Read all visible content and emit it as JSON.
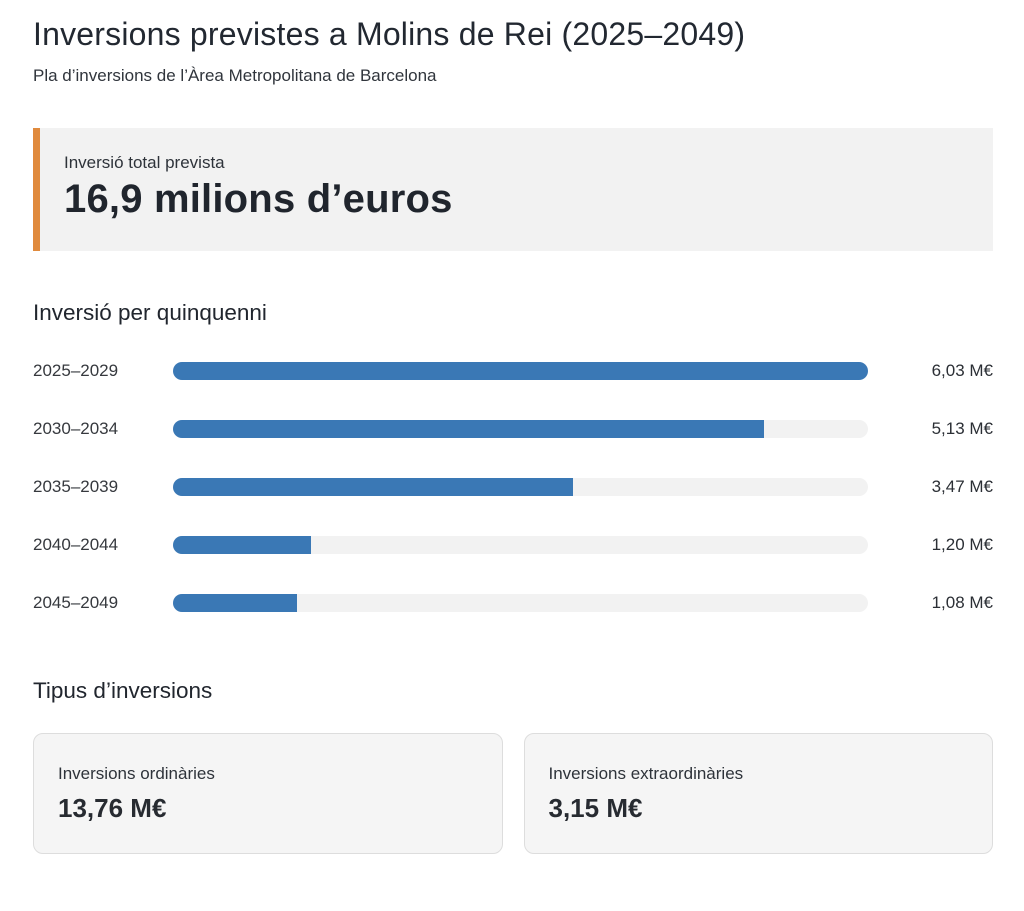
{
  "page": {
    "title": "Inversions previstes a Molins de Rei (2025–2049)",
    "subtitle": "Pla d’inversions de l’Àrea Metropolitana de Barcelona"
  },
  "total": {
    "label": "Inversió total prevista",
    "value": "16,9 milions d’euros"
  },
  "chart_data": {
    "type": "bar",
    "orientation": "horizontal",
    "title": "Inversió per quinquenni",
    "categories": [
      "2025–2029",
      "2030–2034",
      "2035–2039",
      "2040–2044",
      "2045–2049"
    ],
    "values": [
      6.03,
      5.13,
      3.47,
      1.2,
      1.08
    ],
    "value_labels": [
      "6,03 M€",
      "5,13 M€",
      "3,47 M€",
      "1,20 M€",
      "1,08 M€"
    ],
    "unit": "M€",
    "xlim": [
      0,
      6.03
    ],
    "grid": false,
    "legend": false
  },
  "types": {
    "title": "Tipus d’inversions",
    "cards": [
      {
        "label": "Inversions ordinàries",
        "value": "13,76 M€"
      },
      {
        "label": "Inversions extraordinàries",
        "value": "3,15 M€"
      }
    ]
  },
  "colors": {
    "accent_orange": "#e08a3d",
    "bar_blue": "#3a78b5",
    "track_gray": "#f2f2f2",
    "card_gray": "#f5f5f5",
    "text_dark": "#21262e"
  }
}
